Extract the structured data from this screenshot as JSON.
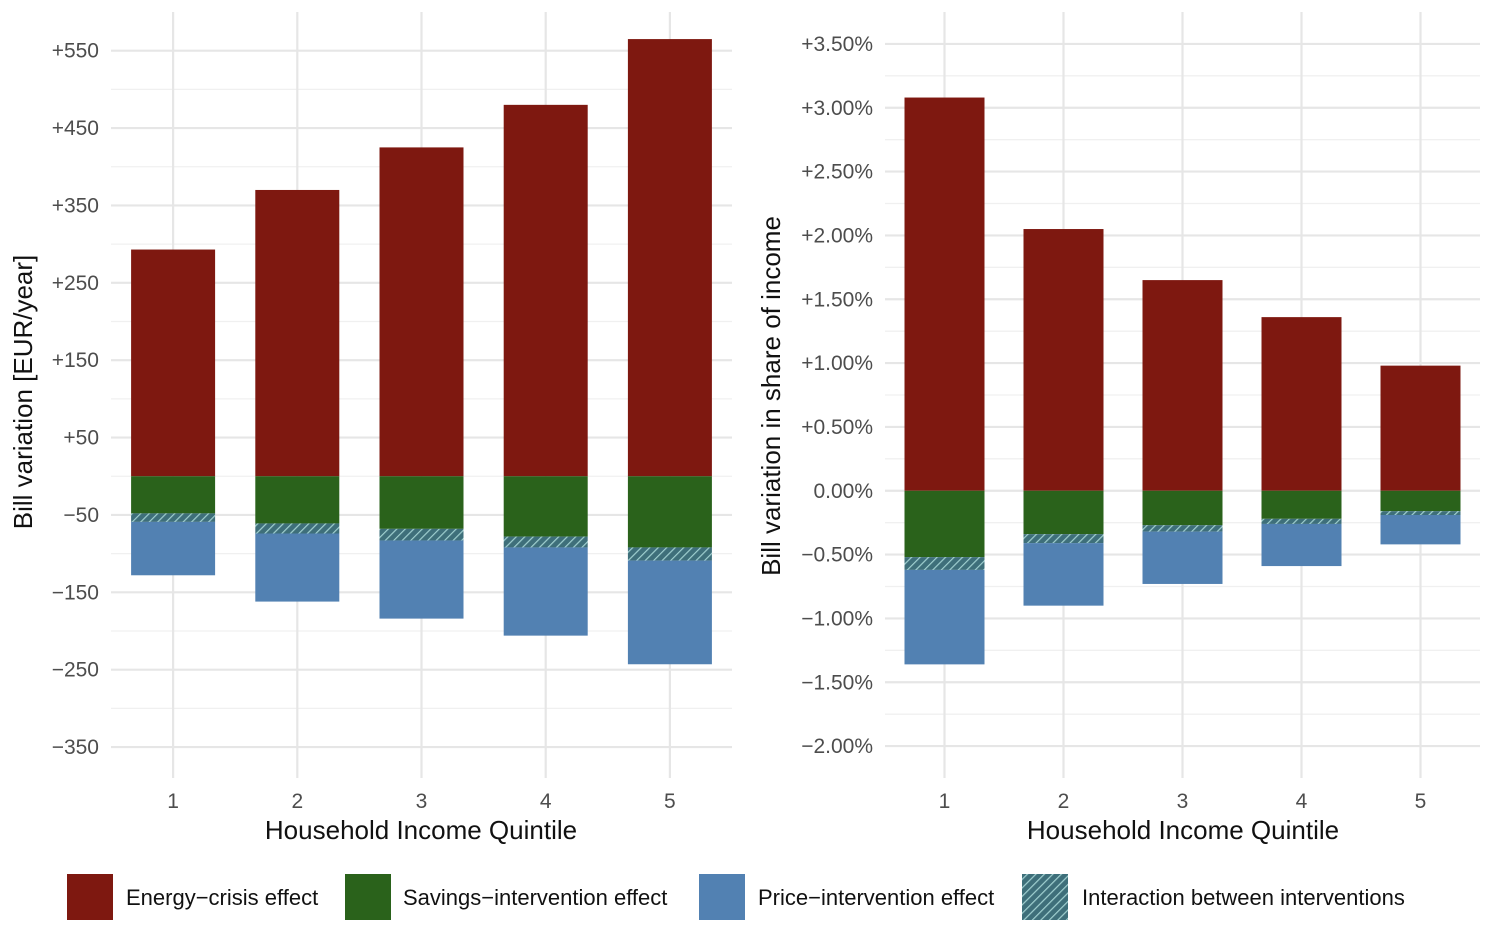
{
  "colors": {
    "energy_crisis": "#7e1810",
    "savings": "#2a621b",
    "price": "#5281b2",
    "interaction_base": "#3e6f7a",
    "interaction_hatch": "#9fcfcf"
  },
  "chart_data": [
    {
      "type": "bar",
      "stacked": true,
      "xlabel": "Household Income Quintile",
      "ylabel": "Bill variation [EUR/year]",
      "categories": [
        "1",
        "2",
        "3",
        "4",
        "5"
      ],
      "ylim": [
        -390,
        600
      ],
      "y_ticks": [
        -350,
        -250,
        -150,
        -50,
        50,
        150,
        250,
        350,
        450,
        550
      ],
      "y_tick_labels": [
        "−350",
        "−250",
        "−150",
        "−50",
        "+50",
        "+150",
        "+250",
        "+350",
        "+450",
        "+550"
      ],
      "grid": true,
      "series": [
        {
          "name": "Energy−crisis effect",
          "key": "energy_crisis",
          "values": [
            293,
            370,
            425,
            480,
            565
          ]
        },
        {
          "name": "Savings−intervention effect",
          "key": "savings",
          "values": [
            -48,
            -61,
            -68,
            -78,
            -92
          ]
        },
        {
          "name": "Interaction between interventions",
          "key": "interaction",
          "values": [
            -11,
            -13,
            -15,
            -14,
            -17
          ]
        },
        {
          "name": "Price−intervention effect",
          "key": "price",
          "values": [
            -69,
            -88,
            -101,
            -114,
            -134
          ]
        }
      ]
    },
    {
      "type": "bar",
      "stacked": true,
      "xlabel": "Household Income Quintile",
      "ylabel": "Bill variation in share of income",
      "categories": [
        "1",
        "2",
        "3",
        "4",
        "5"
      ],
      "ylim": [
        -2.25,
        3.75
      ],
      "y_ticks": [
        -2.0,
        -1.5,
        -1.0,
        -0.5,
        0.0,
        0.5,
        1.0,
        1.5,
        2.0,
        2.5,
        3.0,
        3.5
      ],
      "y_tick_labels": [
        "−2.00%",
        "−1.50%",
        "−1.00%",
        "−0.50%",
        "0.00%",
        "+0.50%",
        "+1.00%",
        "+1.50%",
        "+2.00%",
        "+2.50%",
        "+3.00%",
        "+3.50%"
      ],
      "grid": true,
      "series": [
        {
          "name": "Energy−crisis effect",
          "key": "energy_crisis",
          "values": [
            3.08,
            2.05,
            1.65,
            1.36,
            0.98
          ]
        },
        {
          "name": "Savings−intervention effect",
          "key": "savings",
          "values": [
            -0.52,
            -0.34,
            -0.27,
            -0.22,
            -0.16
          ]
        },
        {
          "name": "Interaction between interventions",
          "key": "interaction",
          "values": [
            -0.1,
            -0.07,
            -0.05,
            -0.04,
            -0.03
          ]
        },
        {
          "name": "Price−intervention effect",
          "key": "price",
          "values": [
            -0.74,
            -0.49,
            -0.41,
            -0.33,
            -0.23
          ]
        }
      ]
    }
  ],
  "legend": {
    "position": "bottom",
    "items": [
      {
        "label": "Energy−crisis effect",
        "key": "energy_crisis"
      },
      {
        "label": "Savings−intervention effect",
        "key": "savings"
      },
      {
        "label": "Price−intervention effect",
        "key": "price"
      },
      {
        "label": "Interaction between interventions",
        "key": "interaction"
      }
    ]
  }
}
